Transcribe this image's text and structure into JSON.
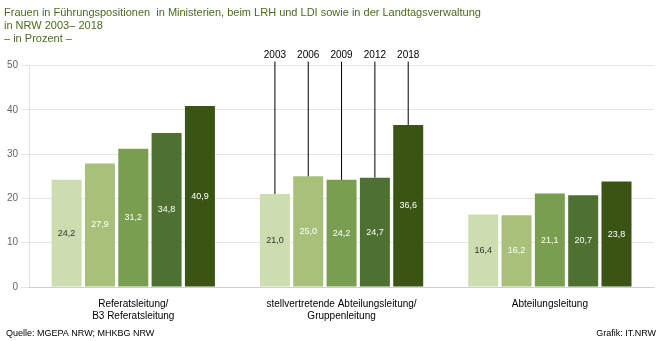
{
  "chart_data": {
    "type": "bar",
    "title": [
      "Frauen in Führungspositionen  in Ministerien, beim LRH und LDI sowie in der Landtagsverwaltung",
      "in NRW 2003– 2018"
    ],
    "subtitle": "– in Prozent –",
    "categories": [
      "Referatsleitung/\nB3 Referatsleitung",
      "stellvertretende Abteilungsleitung/\nGruppenleitung",
      "Abteilungsleitung"
    ],
    "series": [
      {
        "name": "2003",
        "color": "#ccddb0",
        "values": [
          24.2,
          21.0,
          16.4
        ],
        "value_labels": [
          "24,2",
          "21,0",
          "16,4"
        ]
      },
      {
        "name": "2006",
        "color": "#a8c07a",
        "values": [
          27.9,
          25.0,
          16.2
        ],
        "value_labels": [
          "27,9",
          "25,0",
          "16,2"
        ]
      },
      {
        "name": "2009",
        "color": "#7a9e50",
        "values": [
          31.2,
          24.2,
          21.1
        ],
        "value_labels": [
          "31,2",
          "24,2",
          "21,1"
        ]
      },
      {
        "name": "2012",
        "color": "#4e7030",
        "values": [
          34.8,
          24.7,
          20.7
        ],
        "value_labels": [
          "34,8",
          "24,7",
          "20,7"
        ]
      },
      {
        "name": "2018",
        "color": "#3a5414",
        "values": [
          40.9,
          36.6,
          23.8
        ],
        "value_labels": [
          "40,9",
          "36,6",
          "23,8"
        ]
      }
    ],
    "ylim": [
      0,
      50
    ],
    "yticks": [
      0,
      10,
      20,
      30,
      40,
      50
    ],
    "grid": true,
    "data_labels": true,
    "annotations": [
      "Quelle: MGEPA NRW; MHKBG NRW",
      "Grafik: IT.NRW"
    ]
  }
}
